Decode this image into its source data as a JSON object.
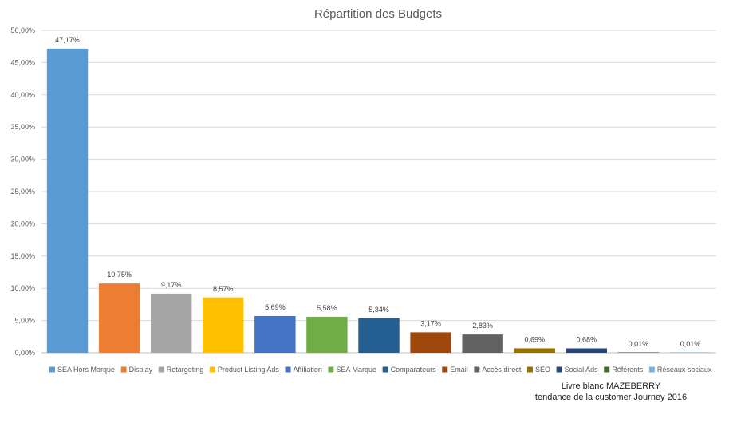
{
  "chart_data": {
    "type": "bar",
    "title": "Répartition des Budgets",
    "categories": [
      "SEA Hors Marque",
      "Display",
      "Retargeting",
      "Product Listing Ads",
      "Affiliation",
      "SEA Marque",
      "Comparateurs",
      "Email",
      "Accès direct",
      "SEO",
      "Social Ads",
      "Référents",
      "Réseaux sociaux"
    ],
    "values": [
      47.17,
      10.75,
      9.17,
      8.57,
      5.69,
      5.58,
      5.34,
      3.17,
      2.83,
      0.69,
      0.68,
      0.01,
      0.01
    ],
    "data_labels": [
      "47,17%",
      "10,75%",
      "9,17%",
      "8,57%",
      "5,69%",
      "5,58%",
      "5,34%",
      "3,17%",
      "2,83%",
      "0,69%",
      "0,68%",
      "0,01%",
      "0,01%"
    ],
    "colors": [
      "#5b9bd5",
      "#ed7d31",
      "#a5a5a5",
      "#ffc000",
      "#4472c4",
      "#70ad47",
      "#255e91",
      "#9e480e",
      "#636363",
      "#997300",
      "#264478",
      "#43682b",
      "#7cafdd"
    ],
    "y_ticks": [
      0,
      5,
      10,
      15,
      20,
      25,
      30,
      35,
      40,
      45,
      50
    ],
    "y_tick_labels": [
      "0,00%",
      "5,00%",
      "10,00%",
      "15,00%",
      "20,00%",
      "25,00%",
      "30,00%",
      "35,00%",
      "40,00%",
      "45,00%",
      "50,00%"
    ],
    "ylim": [
      0,
      50
    ],
    "xlabel": "",
    "ylabel": "",
    "grid": true,
    "legend_position": "bottom"
  },
  "source_note": {
    "line1": "Livre blanc MAZEBERRY",
    "line2": "tendance de la customer Journey 2016"
  }
}
